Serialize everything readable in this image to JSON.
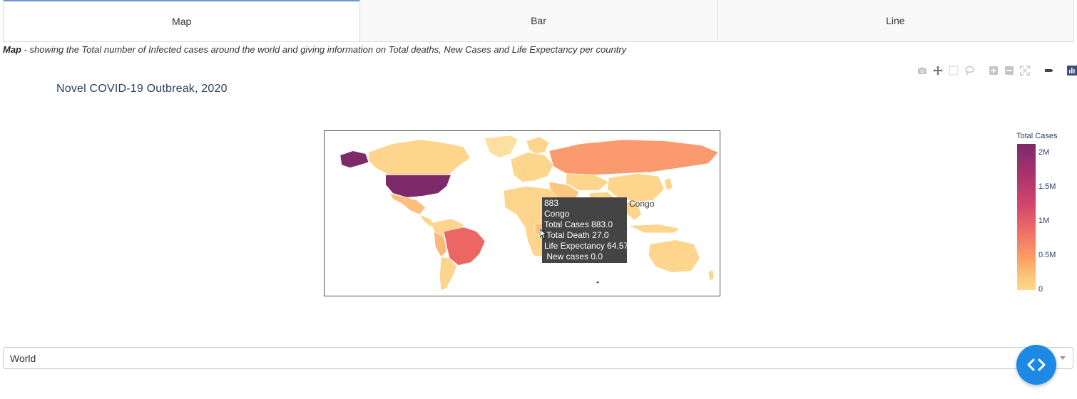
{
  "tabs": [
    {
      "label": "Map",
      "active": true
    },
    {
      "label": "Bar",
      "active": false
    },
    {
      "label": "Line",
      "active": false
    }
  ],
  "description": {
    "bold": "Map",
    "text": " - showing the Total number of Infected cases around the world and giving information on Total deaths, New Cases and Life Expectancy per country"
  },
  "modebar": [
    "camera-icon",
    "pan-icon",
    "box-select-icon",
    "lasso-icon",
    "zoom-in-icon",
    "zoom-out-icon",
    "reset-view-icon",
    "toggle-spikelines-icon",
    "plotly-logo-icon"
  ],
  "chart": {
    "title": "Novel COVID-19 Outbreak, 2020"
  },
  "tooltip": {
    "lines": [
      "883",
      "Congo",
      "Total Cases 883.0",
      " Total Death 27.0",
      "Life Expectancy 64.57",
      " New cases 0.0"
    ],
    "side_label": "Congo"
  },
  "colorbar": {
    "title": "Total Cases",
    "ticks": [
      "2M",
      "1.5M",
      "1M",
      "0.5M",
      "0"
    ]
  },
  "dropdown": {
    "value": "World"
  },
  "colors": {
    "accent": "#6b95d6",
    "fab": "#1e88e5",
    "usa": "#7d2a6a",
    "brazil": "#ec6664",
    "russia": "#fb9a6e",
    "low": "#fdd58c"
  },
  "chart_data": {
    "type": "choropleth",
    "title": "Novel COVID-19 Outbreak, 2020",
    "colorbar_title": "Total Cases",
    "colorbar_ticks": [
      "0",
      "0.5M",
      "1M",
      "1.5M",
      "2M"
    ],
    "color_range": [
      0,
      2200000
    ],
    "hover_point": {
      "country": "Congo",
      "value": 883,
      "total_cases": 883.0,
      "total_death": 27.0,
      "life_expectancy": 64.57,
      "new_cases": 0.0
    }
  }
}
